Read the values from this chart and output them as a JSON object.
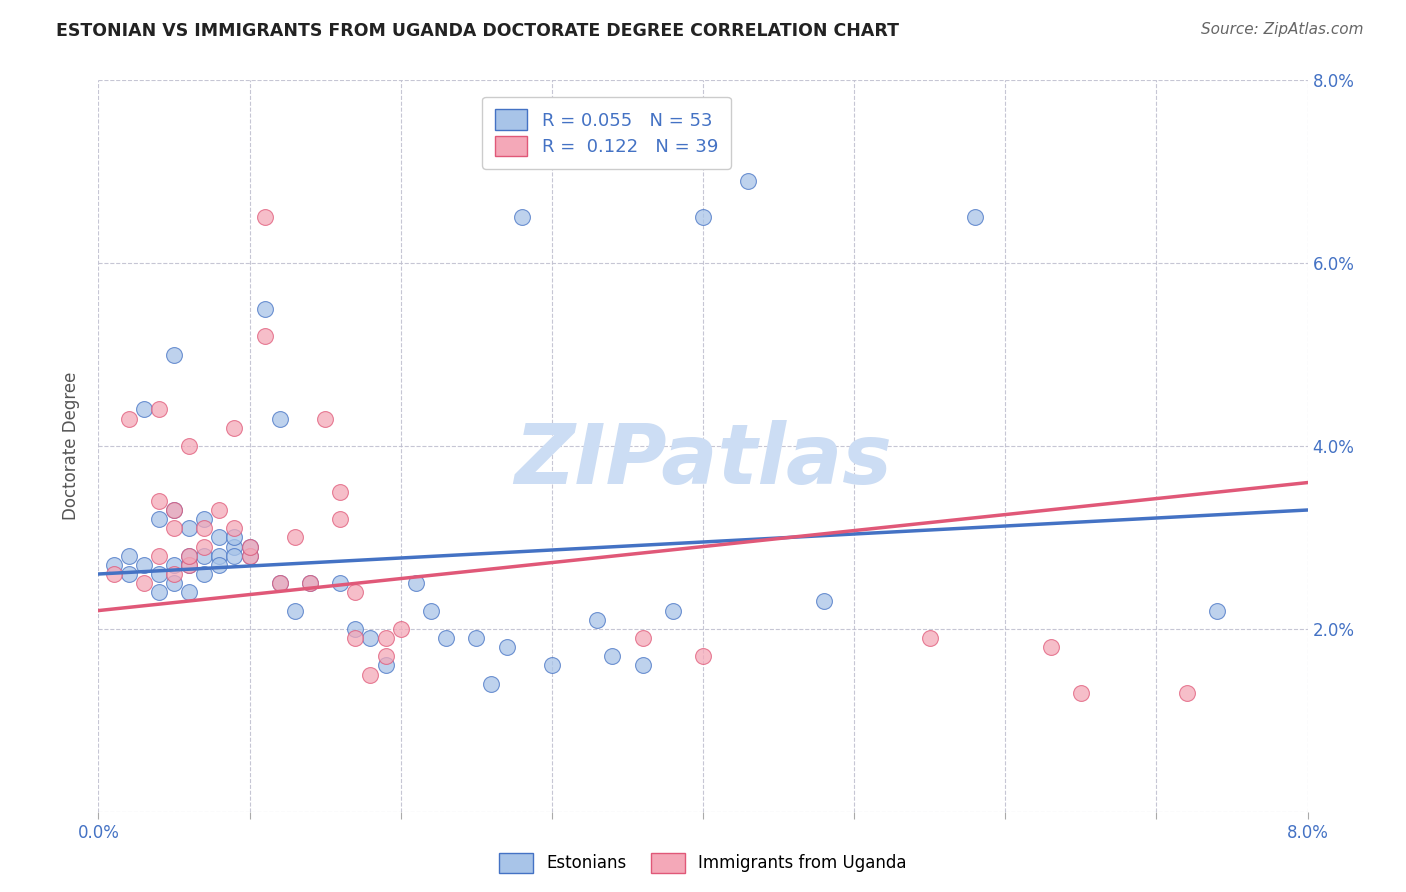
{
  "title": "ESTONIAN VS IMMIGRANTS FROM UGANDA DOCTORATE DEGREE CORRELATION CHART",
  "source": "Source: ZipAtlas.com",
  "ylabel": "Doctorate Degree",
  "xmin": 0.0,
  "xmax": 0.08,
  "ymin": 0.0,
  "ymax": 0.08,
  "blue_R": 0.055,
  "blue_N": 53,
  "pink_R": 0.122,
  "pink_N": 39,
  "blue_color": "#a8c4e8",
  "pink_color": "#f4a8b8",
  "blue_line_color": "#4472c4",
  "pink_line_color": "#e05878",
  "watermark": "ZIPatlas",
  "watermark_color": "#ccddf4",
  "grid_color": "#c0c0d0",
  "blue_trendline": [
    0.0,
    0.08,
    0.026,
    0.033
  ],
  "pink_trendline": [
    0.0,
    0.08,
    0.022,
    0.036
  ],
  "blue_points": [
    [
      0.001,
      0.027
    ],
    [
      0.002,
      0.028
    ],
    [
      0.002,
      0.026
    ],
    [
      0.003,
      0.027
    ],
    [
      0.003,
      0.044
    ],
    [
      0.004,
      0.026
    ],
    [
      0.004,
      0.024
    ],
    [
      0.004,
      0.032
    ],
    [
      0.005,
      0.05
    ],
    [
      0.005,
      0.033
    ],
    [
      0.005,
      0.027
    ],
    [
      0.005,
      0.025
    ],
    [
      0.006,
      0.027
    ],
    [
      0.006,
      0.024
    ],
    [
      0.006,
      0.031
    ],
    [
      0.006,
      0.028
    ],
    [
      0.007,
      0.028
    ],
    [
      0.007,
      0.026
    ],
    [
      0.007,
      0.032
    ],
    [
      0.008,
      0.028
    ],
    [
      0.008,
      0.027
    ],
    [
      0.008,
      0.03
    ],
    [
      0.009,
      0.029
    ],
    [
      0.009,
      0.028
    ],
    [
      0.009,
      0.03
    ],
    [
      0.01,
      0.028
    ],
    [
      0.01,
      0.029
    ],
    [
      0.011,
      0.055
    ],
    [
      0.012,
      0.043
    ],
    [
      0.012,
      0.025
    ],
    [
      0.013,
      0.022
    ],
    [
      0.014,
      0.025
    ],
    [
      0.016,
      0.025
    ],
    [
      0.017,
      0.02
    ],
    [
      0.018,
      0.019
    ],
    [
      0.019,
      0.016
    ],
    [
      0.021,
      0.025
    ],
    [
      0.022,
      0.022
    ],
    [
      0.023,
      0.019
    ],
    [
      0.025,
      0.019
    ],
    [
      0.026,
      0.014
    ],
    [
      0.027,
      0.018
    ],
    [
      0.028,
      0.065
    ],
    [
      0.03,
      0.016
    ],
    [
      0.033,
      0.021
    ],
    [
      0.034,
      0.017
    ],
    [
      0.036,
      0.016
    ],
    [
      0.038,
      0.022
    ],
    [
      0.04,
      0.065
    ],
    [
      0.043,
      0.069
    ],
    [
      0.048,
      0.023
    ],
    [
      0.058,
      0.065
    ],
    [
      0.074,
      0.022
    ]
  ],
  "pink_points": [
    [
      0.001,
      0.026
    ],
    [
      0.002,
      0.043
    ],
    [
      0.003,
      0.025
    ],
    [
      0.004,
      0.028
    ],
    [
      0.004,
      0.044
    ],
    [
      0.004,
      0.034
    ],
    [
      0.005,
      0.031
    ],
    [
      0.005,
      0.026
    ],
    [
      0.005,
      0.033
    ],
    [
      0.006,
      0.04
    ],
    [
      0.006,
      0.027
    ],
    [
      0.006,
      0.028
    ],
    [
      0.007,
      0.031
    ],
    [
      0.007,
      0.029
    ],
    [
      0.008,
      0.033
    ],
    [
      0.009,
      0.042
    ],
    [
      0.009,
      0.031
    ],
    [
      0.01,
      0.028
    ],
    [
      0.01,
      0.029
    ],
    [
      0.011,
      0.052
    ],
    [
      0.011,
      0.065
    ],
    [
      0.012,
      0.025
    ],
    [
      0.013,
      0.03
    ],
    [
      0.014,
      0.025
    ],
    [
      0.015,
      0.043
    ],
    [
      0.016,
      0.032
    ],
    [
      0.016,
      0.035
    ],
    [
      0.017,
      0.019
    ],
    [
      0.017,
      0.024
    ],
    [
      0.018,
      0.015
    ],
    [
      0.019,
      0.017
    ],
    [
      0.019,
      0.019
    ],
    [
      0.02,
      0.02
    ],
    [
      0.036,
      0.019
    ],
    [
      0.04,
      0.017
    ],
    [
      0.055,
      0.019
    ],
    [
      0.063,
      0.018
    ],
    [
      0.065,
      0.013
    ],
    [
      0.072,
      0.013
    ]
  ]
}
